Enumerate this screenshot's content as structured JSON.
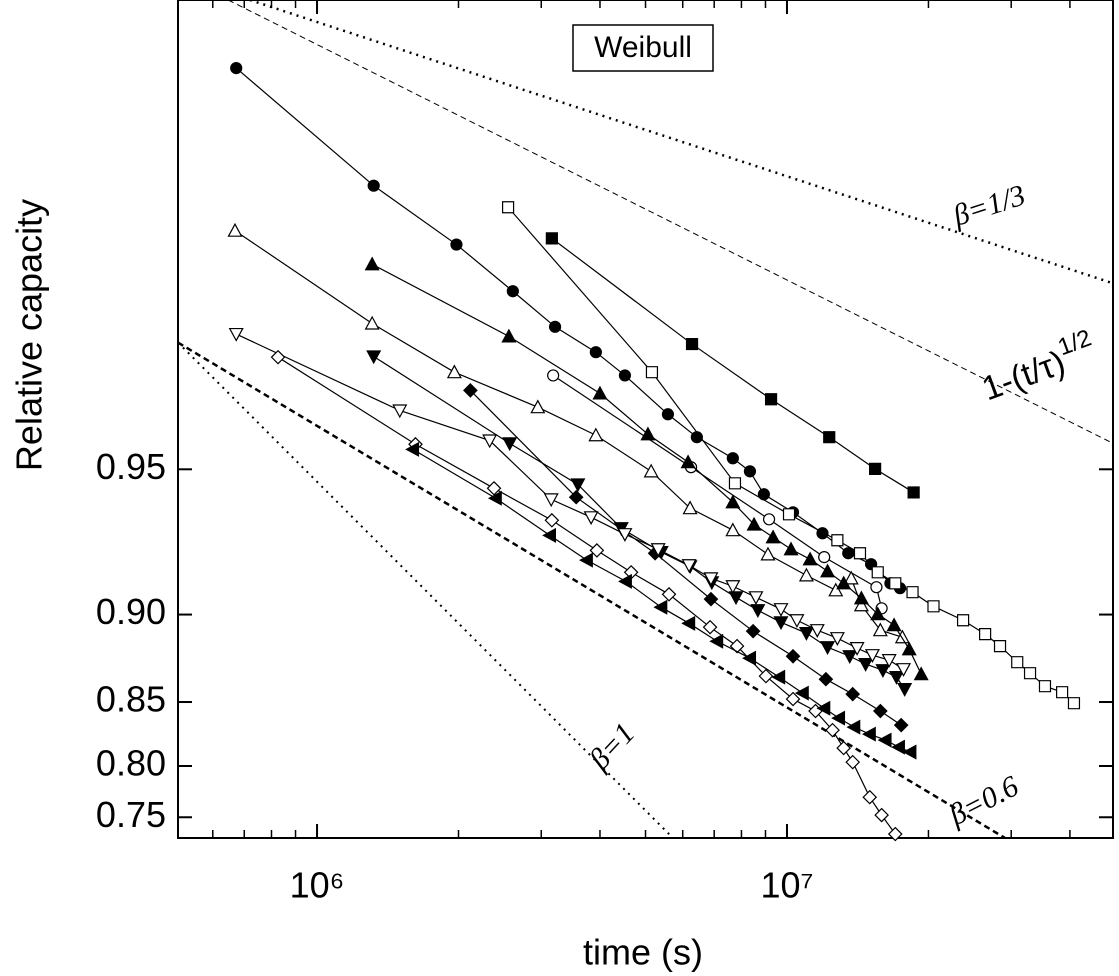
{
  "chart_data": {
    "type": "line",
    "yscale": "weibull",
    "xscale": "log",
    "title": "Weibull",
    "xlabel": "time (s)",
    "ylabel": "Relative capacity",
    "xlim": [
      506000,
      49400000
    ],
    "ylim": [
      0.727,
      0.995
    ],
    "xticks": [
      {
        "value": 1000000,
        "label": "10⁶"
      },
      {
        "value": 10000000,
        "label": "10⁷"
      }
    ],
    "xminor": [
      600000,
      700000,
      800000,
      900000,
      2000000,
      3000000,
      4000000,
      5000000,
      6000000,
      7000000,
      8000000,
      9000000,
      20000000,
      30000000,
      40000000
    ],
    "yticks": [
      0.75,
      {
        "value": 0.8,
        "label": "0.80"
      },
      0.85,
      {
        "value": 0.9,
        "label": "0.90"
      },
      0.95
    ],
    "color": "#000000",
    "series": [
      {
        "marker": "circle",
        "filled": true,
        "x": [
          673000,
          1320000,
          1980000,
          2610000,
          3210000,
          3920000,
          4520000,
          5580000,
          6430000,
          7670000,
          8340000,
          8930000,
          10300000,
          11900000,
          13500000,
          15100000,
          16600000,
          17400000
        ],
        "values": [
          0.993,
          0.9875,
          0.9833,
          0.979,
          0.975,
          0.9717,
          0.9683,
          0.9617,
          0.9572,
          0.9526,
          0.9495,
          0.9436,
          0.9385,
          0.932,
          0.9252,
          0.9212,
          0.9137,
          0.9117
        ]
      },
      {
        "marker": "square",
        "filled": false,
        "x": [
          2550000,
          5160000,
          7750000,
          10100000,
          12800000,
          14300000,
          15600000,
          17000000,
          18500000,
          20500000,
          23700000,
          26400000,
          28400000,
          30900000,
          32900000,
          35400000,
          38500000,
          40800000
        ],
        "values": [
          0.9861,
          0.9688,
          0.9465,
          0.9379,
          0.9297,
          0.9252,
          0.9181,
          0.9137,
          0.91,
          0.9038,
          0.8973,
          0.8904,
          0.8841,
          0.8751,
          0.8686,
          0.8605,
          0.8566,
          0.8492
        ]
      },
      {
        "marker": "square",
        "filled": true,
        "x": [
          3160000,
          6280000,
          9250000,
          12300000,
          15400000,
          18600000
        ],
        "values": [
          0.9838,
          0.9728,
          0.9644,
          0.9572,
          0.9501,
          0.9441
        ]
      },
      {
        "marker": "circle",
        "filled": false,
        "x": [
          3180000,
          6250000,
          9160000,
          12000000,
          15500000,
          15900000
        ],
        "values": [
          0.9683,
          0.9505,
          0.9364,
          0.9238,
          0.9121,
          0.9029
        ]
      },
      {
        "marker": "triangle-up",
        "filled": false,
        "x": [
          669000,
          1310000,
          1960000,
          2950000,
          3920000,
          5140000,
          6220000,
          7670000,
          9110000,
          11000000,
          12700000,
          13700000,
          14400000,
          15800000,
          17600000
        ],
        "values": [
          0.9844,
          0.9754,
          0.9688,
          0.963,
          0.9576,
          0.9495,
          0.9397,
          0.933,
          0.9248,
          0.9169,
          0.9108,
          0.9157,
          0.9043,
          0.8924,
          0.8888
        ]
      },
      {
        "marker": "triangle-up",
        "filled": true,
        "x": [
          1310000,
          2560000,
          4000000,
          5060000,
          6160000,
          7670000,
          8510000,
          9340000,
          10200000,
          11200000,
          12200000,
          13200000,
          14400000,
          15600000,
          16900000,
          18200000,
          19300000
        ],
        "values": [
          0.9816,
          0.9738,
          0.9654,
          0.9578,
          0.9517,
          0.9414,
          0.9348,
          0.9307,
          0.9266,
          0.923,
          0.9185,
          0.9137,
          0.9074,
          0.9002,
          0.8949,
          0.8824,
          0.868
        ]
      },
      {
        "marker": "triangle-down",
        "filled": true,
        "x": [
          1320000,
          2570000,
          3590000,
          4440000,
          5400000,
          6220000,
          6920000,
          7790000,
          8670000,
          9710000,
          11000000,
          12200000,
          13600000,
          14700000,
          16000000,
          17100000,
          17800000
        ],
        "values": [
          0.9711,
          0.9559,
          0.9462,
          0.9336,
          0.9256,
          0.9204,
          0.9141,
          0.9078,
          0.902,
          0.8963,
          0.8909,
          0.8835,
          0.8785,
          0.874,
          0.8704,
          0.8662,
          0.8586
        ]
      },
      {
        "marker": "diamond",
        "filled": true,
        "x": [
          2120000,
          3560000,
          5240000,
          6890000,
          8470000,
          10300000,
          12100000,
          13800000,
          15800000,
          17500000
        ],
        "values": [
          0.9659,
          0.9428,
          0.9252,
          0.907,
          0.8919,
          0.8785,
          0.8649,
          0.8553,
          0.8437,
          0.8334
        ]
      },
      {
        "marker": "triangle-down",
        "filled": false,
        "x": [
          673000,
          1500000,
          2330000,
          3150000,
          3830000,
          4520000,
          5320000,
          6190000,
          6890000,
          7670000,
          8590000,
          9710000,
          10500000,
          11600000,
          12800000,
          14100000,
          15200000,
          16500000,
          17700000
        ],
        "values": [
          0.9741,
          0.9624,
          0.9565,
          0.9422,
          0.937,
          0.9317,
          0.9266,
          0.9208,
          0.9157,
          0.9125,
          0.9078,
          0.9025,
          0.8973,
          0.8924,
          0.8883,
          0.883,
          0.8791,
          0.8763,
          0.871
        ]
      },
      {
        "marker": "diamond",
        "filled": false,
        "x": [
          826000,
          1620000,
          2380000,
          3160000,
          3940000,
          4660000,
          5610000,
          6860000,
          7830000,
          9020000,
          10300000,
          11500000,
          12500000,
          13200000,
          13800000,
          15000000,
          15900000,
          17000000
        ],
        "values": [
          0.971,
          0.9557,
          0.9452,
          0.9361,
          0.9262,
          0.9181,
          0.9091,
          0.8939,
          0.8841,
          0.8668,
          0.852,
          0.8437,
          0.8296,
          0.8153,
          0.8034,
          0.7707,
          0.7523,
          0.7315
        ]
      },
      {
        "marker": "triangle-left",
        "filled": true,
        "x": [
          1600000,
          2400000,
          3130000,
          3750000,
          4540000,
          5400000,
          6190000,
          7100000,
          8340000,
          9620000,
          10800000,
          12000000,
          12900000,
          13900000,
          15000000,
          16200000,
          17300000,
          18300000
        ],
        "values": [
          0.9546,
          0.9425,
          0.9313,
          0.9227,
          0.9145,
          0.9034,
          0.8958,
          0.8867,
          0.8774,
          0.8662,
          0.856,
          0.8457,
          0.8386,
          0.8319,
          0.8265,
          0.8218,
          0.8161,
          0.812
        ]
      }
    ],
    "reference_lines": [
      {
        "label": "β=1/3",
        "style": "dotted",
        "width": 2.5,
        "x": [
          720000,
          49400000
        ],
        "values": [
          0.995,
          0.9798
        ]
      },
      {
        "label": "1-(t/τ)",
        "label_sup": "1/2",
        "style": "dashed",
        "width": 1,
        "x": [
          647000,
          49400000
        ],
        "values": [
          0.995,
          0.9559
        ]
      },
      {
        "label": "β=0.6",
        "style": "dashed",
        "width": 2.5,
        "x": [
          506000,
          29100000
        ],
        "values": [
          0.973,
          0.727
        ]
      },
      {
        "label": "β=1",
        "style": "dotted",
        "width": 2,
        "x": [
          506000,
          5720000
        ],
        "values": [
          0.973,
          0.727
        ]
      }
    ]
  }
}
